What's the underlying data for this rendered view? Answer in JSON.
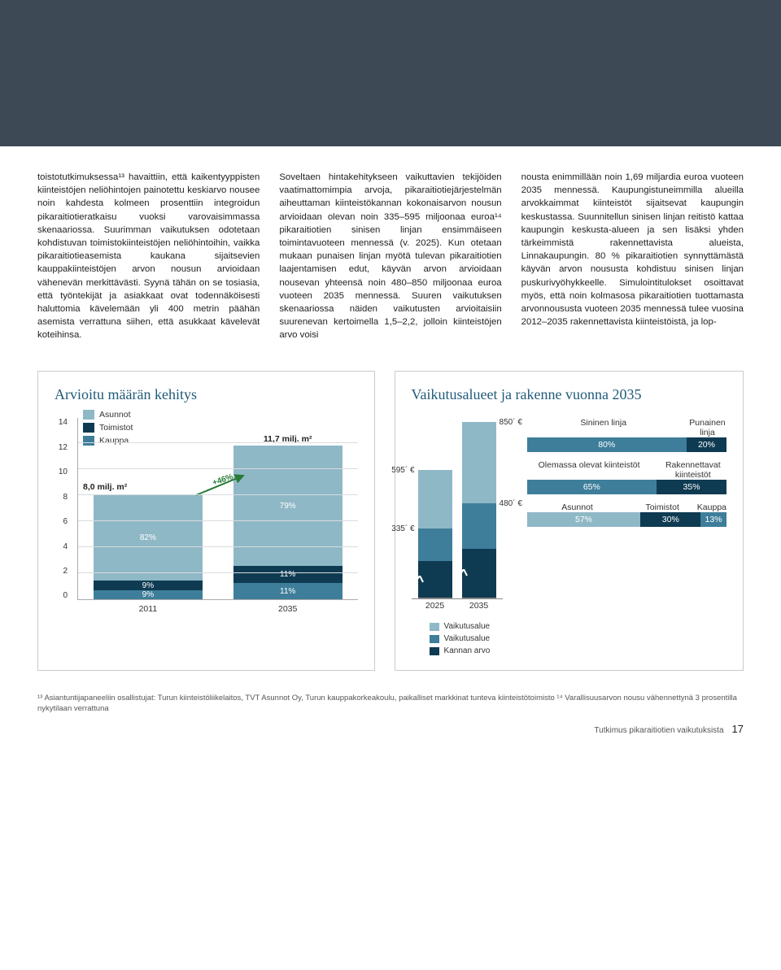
{
  "colors": {
    "topband": "#3d4a55",
    "title": "#215a7a",
    "dark": "#0f3b52",
    "mid": "#3e7e9a",
    "light": "#8fb8c6",
    "green": "#2a7a38",
    "border": "#c8ccd0"
  },
  "body": {
    "col1": "toistotutkimuksessa¹³ havaittiin, että kaikentyyppisten kiinteistöjen neliöhintojen painotettu keskiarvo nousee noin kahdesta kolmeen prosenttiin integroidun pikaraitiotieratkaisu vuoksi varovaisimmassa skenaariossa. Suurimman vaikutuksen odotetaan kohdistuvan toimistokiinteistöjen neliöhintoihin, vaikka pikaraitiotieasemista kaukana sijaitsevien kauppakiinteistöjen arvon nousun arvioidaan vähenevän merkittävästi. Syynä tähän on se tosiasia, että työntekijät ja asiakkaat ovat todennäköisesti haluttomia kävelemään yli 400 metrin päähän asemista verrattuna siihen, että asukkaat kävelevät koteihinsa.",
    "col2": "Soveltaen hintakehitykseen vaikuttavien tekijöiden vaatimattomimpia arvoja, pikaraitiotiejärjestelmän aiheuttaman kiinteistökannan kokonaisarvon nousun arvioidaan olevan noin 335–595 miljoonaa euroa¹⁴ pikaraitiotien sinisen linjan ensimmäiseen toimintavuoteen mennessä (v. 2025). Kun otetaan mukaan punaisen linjan myötä tulevan pikaraitiotien laajentamisen edut, käyvän arvon arvioidaan nousevan yhteensä noin 480–850 miljoonaa euroa vuoteen 2035 mennessä. Suuren vaikutuksen skenaariossa näiden vaikutusten arvioitaisiin suurenevan kertoimella 1,5–2,2, jolloin kiinteistöjen arvo voisi",
    "col3": "nousta enimmillään noin 1,69 miljardia euroa vuoteen 2035 mennessä.\nKaupungistuneimmilla alueilla arvokkaimmat kiinteistöt sijaitsevat kaupungin keskustassa. Suunnitellun sinisen linjan reitistö kattaa kaupungin keskusta-alueen ja sen lisäksi yhden tärkeimmistä rakennettavista alueista, Linnakaupungin. 80 % pikaraitiotien synnyttämästä käyvän arvon noususta kohdistuu sinisen linjan puskurivyöhykkeelle. Simulointitulokset osoittavat myös, että noin kolmasosa pikaraitiotien tuottamasta arvonnoususta vuoteen 2035 mennessä tulee vuosina 2012–2035 rakennettavista kiinteistöistä, ja lop-"
  },
  "panelLeft": {
    "title": "Arvioitu määrän kehitys",
    "ymax": 14,
    "ytick_step": 2,
    "legend": [
      {
        "label": "Asunnot",
        "color": "#8fb8c6"
      },
      {
        "label": "Toimistot",
        "color": "#0f3b52"
      },
      {
        "label": "Kauppa",
        "color": "#3e7e9a"
      }
    ],
    "years": [
      "2011",
      "2035"
    ],
    "stacks": [
      {
        "total_label": "8,0 milj. m²",
        "total_y": 8.0,
        "parts": [
          {
            "v": 0.72,
            "label": "9%",
            "color": "#3e7e9a"
          },
          {
            "v": 0.72,
            "label": "9%",
            "color": "#0f3b52"
          },
          {
            "v": 6.56,
            "label": "82%",
            "color": "#8fb8c6"
          }
        ]
      },
      {
        "total_label": "11,7 milj. m²",
        "total_y": 11.7,
        "parts": [
          {
            "v": 1.287,
            "label": "11%",
            "color": "#3e7e9a"
          },
          {
            "v": 1.287,
            "label": "11%",
            "color": "#0f3b52"
          },
          {
            "v": 9.243,
            "label": "79%",
            "color": "#8fb8c6"
          }
        ]
      }
    ],
    "arrow_label": "+46%"
  },
  "panelRight": {
    "title": "Vaikutusalueet ja rakenne vuonna 2035",
    "bars_years": [
      "2025",
      "2035"
    ],
    "bars": [
      {
        "parts": [
          {
            "v": 45,
            "color": "#0f3b52"
          },
          {
            "v": 40,
            "color": "#3e7e9a",
            "label": "335´ €",
            "lpos": "left"
          },
          {
            "v": 72,
            "color": "#8fb8c6",
            "label": "595´ €",
            "lpos": "left"
          }
        ]
      },
      {
        "parts": [
          {
            "v": 60,
            "color": "#0f3b52"
          },
          {
            "v": 56,
            "color": "#3e7e9a",
            "label": "480´ €",
            "lpos": "right"
          },
          {
            "v": 100,
            "color": "#8fb8c6",
            "label": "850´ €",
            "lpos": "right"
          }
        ]
      }
    ],
    "mini_legend": [
      {
        "color": "#8fb8c6",
        "label": "Vaikutusalue"
      },
      {
        "color": "#3e7e9a",
        "label": "Vaikutusalue"
      },
      {
        "color": "#0f3b52",
        "label": "Kannan arvo"
      }
    ],
    "rows": [
      {
        "head_l": "Sininen linja",
        "head_r": "Punainen linja",
        "parts": [
          {
            "pct": 80,
            "label": "80%",
            "color": "#3e7e9a"
          },
          {
            "pct": 20,
            "label": "20%",
            "color": "#0f3b52"
          }
        ]
      },
      {
        "head_l": "Olemassa olevat kiinteistöt",
        "head_r": "Rakennettavat kiinteistöt",
        "parts": [
          {
            "pct": 65,
            "label": "65%",
            "color": "#3e7e9a"
          },
          {
            "pct": 35,
            "label": "35%",
            "color": "#0f3b52"
          }
        ]
      },
      {
        "head_l": "Asunnot",
        "head_m": "Toimistot",
        "head_r": "Kauppa",
        "parts": [
          {
            "pct": 57,
            "label": "57%",
            "color": "#8fb8c6"
          },
          {
            "pct": 30,
            "label": "30%",
            "color": "#0f3b52"
          },
          {
            "pct": 13,
            "label": "13%",
            "color": "#3e7e9a"
          }
        ]
      }
    ]
  },
  "footnotes": "¹³ Asiantuntijapaneeliin osallistujat: Turun kiinteistöliikelaitos, TVT Asunnot Oy, Turun kauppakorkeakoulu, paikalliset markkinat tunteva kiinteistötoimisto  ¹⁴ Varallisuusarvon nousu vähennettynä 3 prosentilla nykytilaan verrattuna",
  "footer": {
    "section": "Tutkimus pikaraitiotien vaikutuksista",
    "page": "17"
  }
}
